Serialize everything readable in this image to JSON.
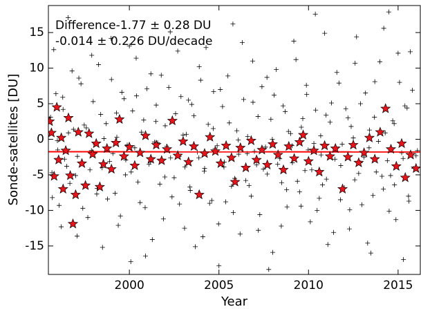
{
  "chart_data": {
    "type": "scatter",
    "xlabel": "Year",
    "ylabel": "Sonde-satellites [DU]",
    "annotations": [
      "Difference-1.77 ± 0.28 DU",
      "-0.014 ± 0.226 DU/decade"
    ],
    "xlim": [
      1995.48,
      2016.24
    ],
    "xticks": [
      2000,
      2005,
      2010,
      2015
    ],
    "ylim": [
      -19,
      18.8
    ],
    "yticks": [
      -15,
      -10,
      -5,
      0,
      5,
      10,
      15
    ],
    "grid": false,
    "series": [
      {
        "marker": "plus",
        "color": "#000000",
        "x": [
          1995.6,
          1995.7,
          1995.9,
          1996.0,
          1996.2,
          1996.3,
          1996.5,
          1996.6,
          1996.8,
          1997.0,
          1997.1,
          1997.3,
          1997.4,
          1997.6,
          1997.8,
          1997.9,
          1998.1,
          1998.2,
          1998.4,
          1998.5,
          1998.7,
          1998.9,
          1999.0,
          1999.2,
          1999.3,
          1999.5,
          1999.7,
          1999.8,
          2000.0,
          2000.1,
          2000.3,
          2000.4,
          2000.6,
          2000.8,
          2000.9,
          2001.1,
          2001.2,
          2001.4,
          2001.5,
          2001.7,
          2001.9,
          2002.0,
          2002.2,
          2002.3,
          2002.5,
          2002.7,
          2002.8,
          2003.0,
          2003.1,
          2003.3,
          2003.4,
          2003.6,
          2003.8,
          2003.9,
          2004.1,
          2004.2,
          2004.4,
          2004.6,
          2004.7,
          2004.9,
          2005.0,
          2005.2,
          2005.3,
          2005.5,
          2005.7,
          2005.8,
          2006.0,
          2006.1,
          2006.3,
          2006.5,
          2006.6,
          2006.8,
          2006.9,
          2007.1,
          2007.2,
          2007.4,
          2007.6,
          2007.7,
          2007.9,
          2008.0,
          2008.2,
          2008.4,
          2008.5,
          2008.7,
          2008.8,
          2009.0,
          2009.1,
          2009.3,
          2009.5,
          2009.6,
          2009.8,
          2009.9,
          2010.1,
          2010.3,
          2010.4,
          2010.6,
          2010.7,
          2010.9,
          2011.0,
          2011.2,
          2011.4,
          2011.5,
          2011.7,
          2011.8,
          2012.0,
          2012.2,
          2012.3,
          2012.5,
          2012.6,
          2012.8,
          2012.9,
          2013.1,
          2013.3,
          2013.4,
          2013.6,
          2013.7,
          2013.9,
          2014.1,
          2014.2,
          2014.4,
          2014.5,
          2014.7,
          2014.8,
          2015.0,
          2015.2,
          2015.3,
          2015.5,
          2015.6,
          2015.8,
          2016.0,
          1995.68,
          1995.78,
          1995.98,
          1996.08,
          1996.28,
          1996.38,
          1996.58,
          1996.68,
          1996.88,
          1997.08,
          1997.18,
          1997.38,
          1997.48,
          1997.68,
          1997.88,
          1997.98,
          1998.18,
          1998.28,
          1998.48,
          1998.58,
          1998.78,
          1998.98,
          1999.08,
          1999.28,
          1999.38,
          1999.58,
          1999.78,
          1999.88,
          2000.08,
          2000.18,
          2000.38,
          2000.48,
          2000.68,
          2000.88,
          2000.98,
          2001.18,
          2001.28,
          2001.48,
          2001.58,
          2001.78,
          2001.98,
          2002.08,
          2002.28,
          2002.38,
          2002.58,
          2002.78,
          2002.88,
          2003.08,
          2003.18,
          2003.38,
          2003.48,
          2003.68,
          2003.88,
          2003.98,
          2004.18,
          2004.28,
          2004.48,
          2004.68,
          2004.78,
          2004.98,
          2005.08,
          2005.28,
          2005.38,
          2005.58,
          2005.78,
          2005.88,
          2006.08,
          2006.18,
          2006.38,
          2006.58,
          2006.68,
          2006.88,
          2006.98,
          2007.18,
          2007.28,
          2007.48,
          2007.68,
          2007.78,
          2007.98,
          2008.08,
          2008.28,
          2008.48,
          2008.58,
          2008.78,
          2008.88,
          2009.08,
          2009.18,
          2009.38,
          2009.58,
          2009.68,
          2009.88,
          2009.98,
          2010.18,
          2010.38,
          2010.48,
          2010.68,
          2010.78,
          2010.98,
          2011.08,
          2011.28,
          2011.48,
          2011.58,
          2011.78,
          2011.88,
          2012.08,
          2012.28,
          2012.38,
          2012.58,
          2012.68,
          2012.88,
          2012.98,
          2013.18,
          2013.38,
          2013.48,
          2013.68,
          2013.78,
          2013.98,
          2014.18,
          2014.28,
          2014.48,
          2014.58,
          2014.78,
          2014.88,
          2015.08,
          2015.28,
          2015.38,
          2015.58,
          2015.68,
          2015.88,
          2016.08
        ],
        "values": [
          3.1,
          -8.2,
          6.4,
          -1.5,
          -12.3,
          4.2,
          -3.8,
          0.9,
          9.6,
          -5.1,
          -2.4,
          7.8,
          -9.7,
          1.6,
          -4.3,
          11.8,
          -0.7,
          -6.9,
          3.5,
          -15.2,
          2.2,
          -3.1,
          8.4,
          -7.6,
          0.3,
          -10.8,
          5.7,
          -2.9,
          13.1,
          -4.6,
          -1.2,
          6.1,
          -8.9,
          2.7,
          -16.4,
          -3.5,
          9.2,
          -0.4,
          4.8,
          -6.3,
          -11.2,
          1.9,
          7.3,
          -2.6,
          -5.4,
          12.4,
          -9.1,
          0.6,
          -3.9,
          5.5,
          -7.2,
          3.3,
          -1.8,
          10.2,
          -13.7,
          -4.1,
          2.1,
          -8.6,
          6.7,
          -0.9,
          -17.8,
          4.6,
          -3.2,
          8.9,
          -6.6,
          -10.3,
          1.2,
          -2.1,
          13.6,
          -5.8,
          0.4,
          -8.0,
          5.2,
          -3.6,
          -12.8,
          7.4,
          -1.1,
          -4.9,
          2.8,
          -15.9,
          9.8,
          -2.7,
          -6.1,
          3.9,
          -9.5,
          0.8,
          -3.3,
          11.2,
          -7.4,
          1.7,
          -4.4,
          6.3,
          -11.6,
          -0.6,
          4.1,
          -8.3,
          -2.2,
          14.9,
          -5.6,
          2.4,
          -13.1,
          -1.4,
          7.9,
          -3.7,
          -6.8,
          3.0,
          -9.9,
          0.2,
          10.7,
          -4.8,
          5.0,
          -2.5,
          -14.6,
          1.3,
          -7.9,
          8.1,
          -0.3,
          -5.2,
          15.6,
          -3.0,
          -10.1,
          2.6,
          -6.4,
          12.1,
          -1.9,
          -16.9,
          4.4,
          -8.7,
          6.9,
          -2.3,
          -4.7,
          12.6,
          -0.2,
          -9.3,
          5.9,
          -2.8,
          17.1,
          -6.2,
          1.4,
          -13.6,
          8.6,
          -3.4,
          2.0,
          -11.0,
          -1.6,
          5.3,
          -7.7,
          10.5,
          -4.0,
          0.1,
          -8.4,
          14.2,
          -2.0,
          3.7,
          -12.1,
          6.6,
          -5.0,
          -0.8,
          -17.2,
          4.0,
          11.4,
          -6.0,
          1.0,
          -9.6,
          7.1,
          -3.2,
          -14.1,
          2.5,
          -0.5,
          9.0,
          -5.3,
          -1.0,
          15.1,
          -8.1,
          3.6,
          -2.4,
          6.0,
          -12.5,
          0.7,
          -6.7,
          4.9,
          -15.1,
          -2.6,
          8.3,
          -4.5,
          12.9,
          -9.0,
          1.5,
          -1.3,
          -11.9,
          7.0,
          -3.9,
          -8.8,
          2.3,
          16.2,
          -5.5,
          -0.1,
          -13.3,
          5.6,
          -2.0,
          -6.5,
          11.0,
          -1.7,
          3.2,
          -10.6,
          -4.2,
          8.7,
          -18.3,
          0.0,
          6.2,
          -3.5,
          -12.2,
          4.7,
          -7.1,
          1.1,
          -0.9,
          13.8,
          -5.9,
          -9.4,
          2.9,
          7.6,
          -1.5,
          -4.3,
          17.6,
          -10.0,
          0.5,
          -6.4,
          3.4,
          -14.8,
          5.1,
          -2.8,
          9.4,
          -8.5,
          -0.7,
          4.3,
          -12.6,
          1.8,
          -5.7,
          14.4,
          -3.3,
          -9.2,
          6.5,
          -1.2,
          -16.0,
          3.1,
          -4.6,
          10.9,
          -7.0,
          0.9,
          17.9,
          -5.1,
          2.2,
          -11.3,
          8.0,
          -2.7,
          4.7,
          -8.0,
          12.3,
          -4.1,
          -1.6
        ]
      },
      {
        "marker": "line",
        "color": "#ff0000",
        "x": [
          1995.48,
          2016.24
        ],
        "values": [
          -1.75,
          -1.78
        ]
      },
      {
        "marker": "star",
        "color": "#e8141b",
        "x": [
          1995.55,
          1995.65,
          1995.8,
          1995.95,
          1996.05,
          1996.2,
          1996.3,
          1996.45,
          1996.6,
          1996.7,
          1996.85,
          1997.0,
          1997.15,
          1997.35,
          1997.55,
          1997.75,
          1997.95,
          1998.15,
          1998.35,
          1998.55,
          1998.75,
          1999.0,
          1999.25,
          1999.45,
          1999.7,
          2000.0,
          2000.3,
          2000.6,
          2000.9,
          2001.2,
          2001.5,
          2001.8,
          2002.1,
          2002.4,
          2002.7,
          2003.0,
          2003.3,
          2003.6,
          2003.9,
          2004.2,
          2004.5,
          2004.8,
          2005.1,
          2005.4,
          2005.7,
          2005.9,
          2006.2,
          2006.5,
          2006.8,
          2007.1,
          2007.4,
          2007.7,
          2008.0,
          2008.3,
          2008.6,
          2008.9,
          2009.2,
          2009.5,
          2009.7,
          2010.0,
          2010.3,
          2010.6,
          2010.9,
          2011.2,
          2011.5,
          2011.9,
          2012.2,
          2012.5,
          2012.8,
          2013.1,
          2013.4,
          2013.7,
          2014.0,
          2014.3,
          2014.6,
          2014.9,
          2015.2,
          2015.4,
          2015.7,
          2016.0
        ],
        "values": [
          2.5,
          0.9,
          -5.2,
          4.5,
          -2.9,
          0.2,
          -7.0,
          -1.6,
          3.0,
          -5.1,
          -11.9,
          -7.8,
          1.0,
          -3.4,
          -6.5,
          0.8,
          -2.1,
          -0.6,
          -6.7,
          -3.5,
          -1.3,
          -4.2,
          -0.5,
          2.8,
          -2.4,
          -1.1,
          -3.7,
          -1.9,
          0.5,
          -2.8,
          -0.8,
          -3.0,
          -1.4,
          2.6,
          -2.3,
          -0.3,
          -3.2,
          -1.0,
          -7.8,
          -2.0,
          0.3,
          -1.7,
          -3.4,
          -0.9,
          -2.6,
          -6.0,
          -1.2,
          -4.0,
          -0.2,
          -2.9,
          -1.5,
          -3.6,
          -0.7,
          -2.2,
          -4.3,
          -1.0,
          -2.7,
          -0.4,
          0.6,
          -3.1,
          -1.6,
          -4.6,
          -0.9,
          -2.4,
          -1.3,
          -7.0,
          -2.5,
          -0.8,
          -3.3,
          -1.9,
          0.2,
          -2.8,
          1.0,
          4.3,
          -1.4,
          -3.8,
          -0.6,
          -5.4,
          -2.2,
          -4.1
        ]
      }
    ]
  }
}
